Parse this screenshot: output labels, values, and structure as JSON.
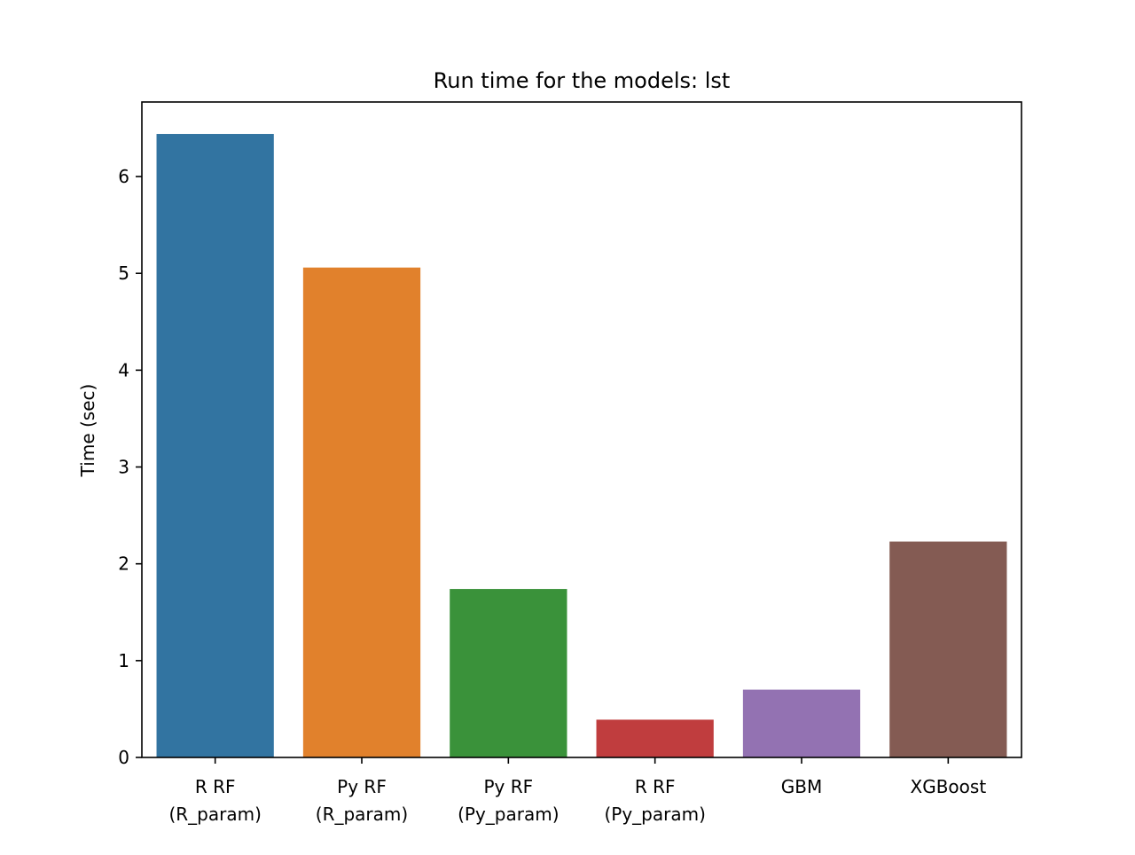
{
  "chart_data": {
    "type": "bar",
    "title": "Run time for the models: lst",
    "xlabel": "",
    "ylabel": "Time (sec)",
    "categories": [
      [
        "R RF",
        "(R_param)"
      ],
      [
        "Py RF",
        "(R_param)"
      ],
      [
        "Py RF",
        "(Py_param)"
      ],
      [
        "R RF",
        "(Py_param)"
      ],
      [
        "GBM"
      ],
      [
        "XGBoost"
      ]
    ],
    "values": [
      6.44,
      5.06,
      1.74,
      0.39,
      0.7,
      2.23
    ],
    "colors": [
      "#3274a1",
      "#e1812c",
      "#3a923a",
      "#c03d3e",
      "#9372b2",
      "#845b53"
    ],
    "ylim": [
      0,
      6.77
    ],
    "yticks": [
      0,
      1,
      2,
      3,
      4,
      5,
      6
    ],
    "grid": false,
    "legend": "none"
  }
}
